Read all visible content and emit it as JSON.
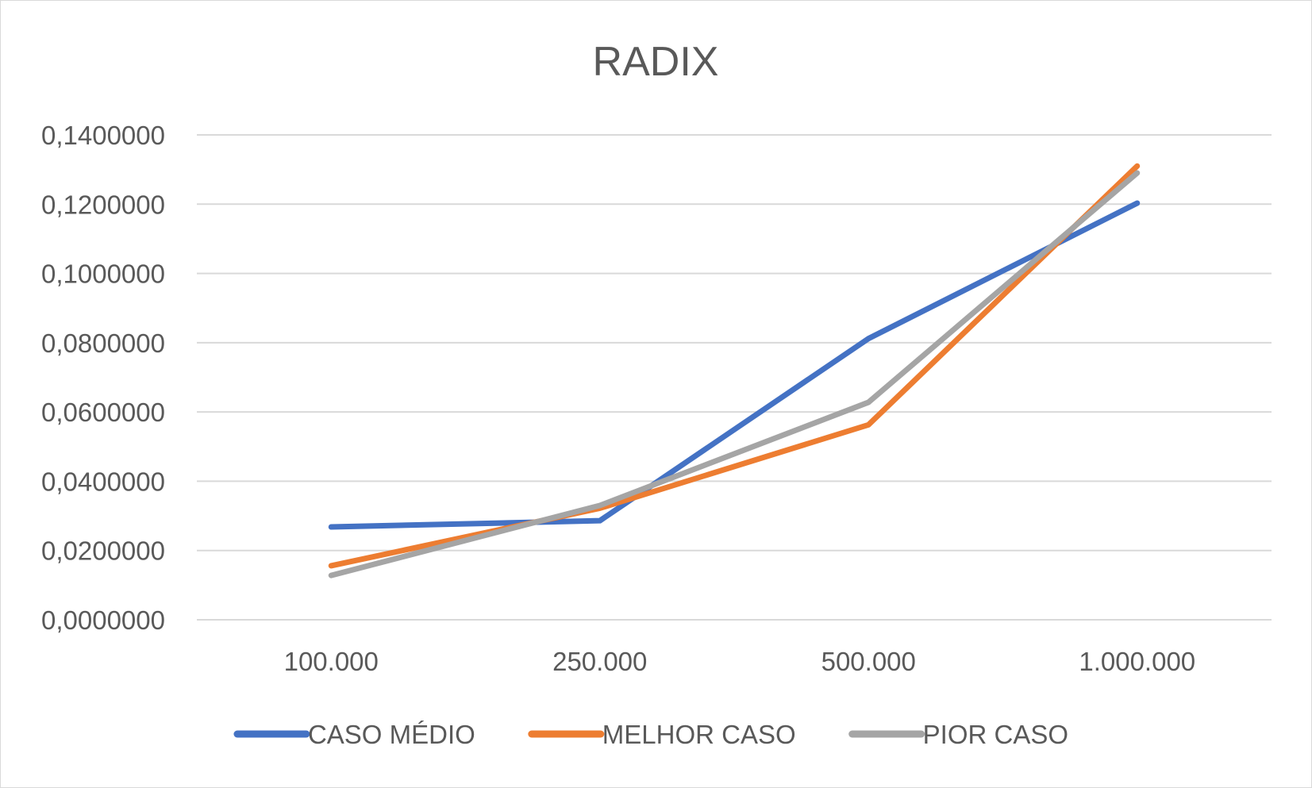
{
  "chart_data": {
    "type": "line",
    "title": "RADIX",
    "categories": [
      "100.000",
      "250.000",
      "500.000",
      "1.000.000"
    ],
    "y_tick_labels": [
      "0,0000000",
      "0,0200000",
      "0,0400000",
      "0,0600000",
      "0,0800000",
      "0,1000000",
      "0,1200000",
      "0,1400000"
    ],
    "ylim": [
      0,
      0.14
    ],
    "y_ticks": [
      0,
      0.02,
      0.04,
      0.06,
      0.08,
      0.1,
      0.12,
      0.14
    ],
    "grid": true,
    "legend_position": "bottom",
    "series": [
      {
        "name": "CASO MÉDIO",
        "color": "#4472c4",
        "values": [
          0.0268,
          0.0286,
          0.0812,
          0.1203
        ]
      },
      {
        "name": "MELHOR CASO",
        "color": "#ed7d31",
        "values": [
          0.0156,
          0.0322,
          0.0563,
          0.131
        ]
      },
      {
        "name": "PIOR CASO",
        "color": "#a5a5a5",
        "values": [
          0.0128,
          0.033,
          0.0628,
          0.129
        ]
      }
    ]
  }
}
